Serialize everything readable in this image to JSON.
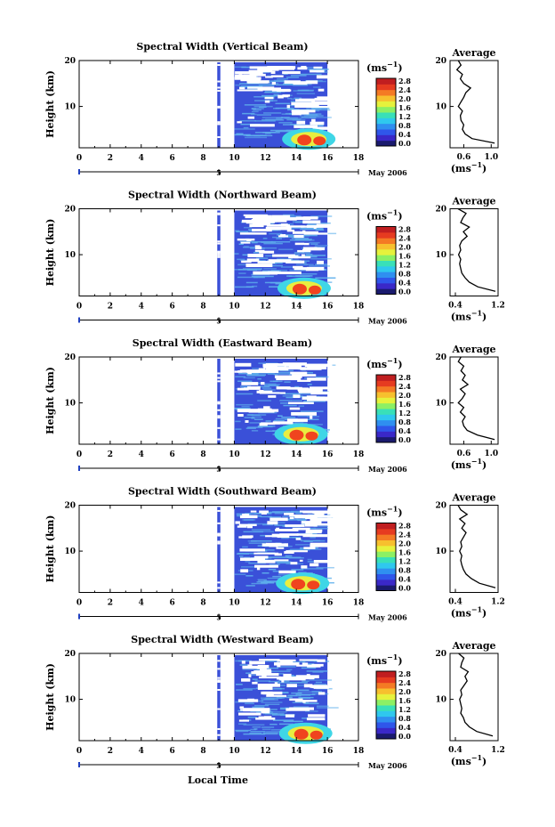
{
  "figure": {
    "xlabel": "Local Time",
    "ylabel": "Height (km)",
    "date_label": "May 2006",
    "colorbar_unit": "(ms",
    "colorbar_unit_exp": "−1",
    "avg_title": "Average",
    "avg_xunit": "(ms",
    "avg_xunit_exp": "−1",
    "colorbar_ticks": [
      "0.0",
      "0.4",
      "0.8",
      "1.2",
      "1.6",
      "2.0",
      "2.4",
      "2.8"
    ],
    "colorbar_colors": [
      "#1a1a6e",
      "#3a28c8",
      "#2f56ea",
      "#2f8ff0",
      "#2fc8ee",
      "#39e0b8",
      "#8cf064",
      "#e6f23c",
      "#f7c02e",
      "#f47a24",
      "#e63b20",
      "#c01e20"
    ],
    "x_ticks": [
      0,
      2,
      4,
      6,
      8,
      10,
      12,
      14,
      16,
      18
    ],
    "y_ticks": [
      10,
      20
    ],
    "colors": {
      "background": "#3a50d8",
      "streak": "#5fb0ec",
      "hot": "#f0441e"
    }
  },
  "chart_data": [
    {
      "type": "heatmap",
      "title": "Spectral Width (Vertical Beam)",
      "xlim": [
        0,
        18
      ],
      "ylim": [
        1,
        20
      ],
      "x_ticks": [
        0,
        2,
        4,
        6,
        8,
        10,
        12,
        14,
        16,
        18
      ],
      "y_ticks": [
        10,
        20
      ],
      "coverage": [
        [
          8.9,
          9.1
        ],
        [
          10.0,
          16.0
        ]
      ],
      "max_height_km": 20,
      "hot_spot": {
        "t": 14.8,
        "h": 2.5,
        "value": 2.8
      },
      "average_profile": {
        "title": "Average",
        "xlim": [
          0.4,
          1.1
        ],
        "x_ticks": [
          0.6,
          1.0
        ],
        "y_ticks": [
          10,
          20
        ],
        "height_km": [
          2,
          3,
          4,
          5,
          6,
          7,
          8,
          9,
          10,
          11,
          12,
          13,
          14,
          15,
          16,
          17,
          18,
          19,
          20
        ],
        "value": [
          1.05,
          0.72,
          0.62,
          0.58,
          0.6,
          0.56,
          0.55,
          0.58,
          0.52,
          0.56,
          0.6,
          0.63,
          0.7,
          0.6,
          0.55,
          0.58,
          0.5,
          0.56,
          0.52
        ]
      }
    },
    {
      "type": "heatmap",
      "title": "Spectral Width (Northward Beam)",
      "xlim": [
        0,
        18
      ],
      "ylim": [
        1,
        20
      ],
      "x_ticks": [
        0,
        2,
        4,
        6,
        8,
        10,
        12,
        14,
        16,
        18
      ],
      "y_ticks": [
        10,
        20
      ],
      "coverage": [
        [
          8.9,
          9.1
        ],
        [
          10.0,
          16.0
        ]
      ],
      "max_height_km": 20,
      "hot_spot": {
        "t": 14.5,
        "h": 2.3,
        "value": 2.8
      },
      "average_profile": {
        "title": "Average",
        "xlim": [
          0.3,
          1.2
        ],
        "x_ticks": [
          0.4,
          1.2
        ],
        "y_ticks": [
          10,
          20
        ],
        "height_km": [
          2,
          3,
          4,
          5,
          6,
          7,
          8,
          9,
          10,
          11,
          12,
          13,
          14,
          15,
          16,
          17,
          18,
          19,
          20
        ],
        "value": [
          1.15,
          0.82,
          0.66,
          0.58,
          0.52,
          0.5,
          0.48,
          0.5,
          0.46,
          0.5,
          0.48,
          0.52,
          0.62,
          0.55,
          0.66,
          0.5,
          0.54,
          0.6,
          0.45
        ]
      }
    },
    {
      "type": "heatmap",
      "title": "Spectral Width (Eastward Beam)",
      "xlim": [
        0,
        18
      ],
      "ylim": [
        1,
        20
      ],
      "x_ticks": [
        0,
        2,
        4,
        6,
        8,
        10,
        12,
        14,
        16,
        18
      ],
      "y_ticks": [
        10,
        20
      ],
      "coverage": [
        [
          8.9,
          9.1
        ],
        [
          10.0,
          16.0
        ]
      ],
      "max_height_km": 20,
      "hot_spot": {
        "t": 14.3,
        "h": 2.8,
        "value": 2.8
      },
      "average_profile": {
        "title": "Average",
        "xlim": [
          0.4,
          1.1
        ],
        "x_ticks": [
          0.6,
          1.0
        ],
        "y_ticks": [
          10,
          20
        ],
        "height_km": [
          2,
          3,
          4,
          5,
          6,
          7,
          8,
          9,
          10,
          11,
          12,
          13,
          14,
          15,
          16,
          17,
          18,
          19,
          20
        ],
        "value": [
          1.05,
          0.8,
          0.65,
          0.6,
          0.58,
          0.62,
          0.55,
          0.6,
          0.52,
          0.58,
          0.62,
          0.55,
          0.66,
          0.58,
          0.62,
          0.56,
          0.6,
          0.52,
          0.56
        ]
      }
    },
    {
      "type": "heatmap",
      "title": "Spectral Width (Southward Beam)",
      "xlim": [
        0,
        18
      ],
      "ylim": [
        1,
        20
      ],
      "x_ticks": [
        0,
        2,
        4,
        6,
        8,
        10,
        12,
        14,
        16,
        18
      ],
      "y_ticks": [
        10,
        20
      ],
      "coverage": [
        [
          8.9,
          9.1
        ],
        [
          10.0,
          16.0
        ]
      ],
      "max_height_km": 20,
      "hot_spot": {
        "t": 14.4,
        "h": 2.6,
        "value": 2.8
      },
      "average_profile": {
        "title": "Average",
        "xlim": [
          0.3,
          1.2
        ],
        "x_ticks": [
          0.4,
          1.2
        ],
        "y_ticks": [
          10,
          20
        ],
        "height_km": [
          2,
          3,
          4,
          5,
          6,
          7,
          8,
          9,
          10,
          11,
          12,
          13,
          14,
          15,
          16,
          17,
          18,
          19,
          20
        ],
        "value": [
          1.15,
          0.85,
          0.7,
          0.6,
          0.55,
          0.52,
          0.5,
          0.52,
          0.48,
          0.52,
          0.5,
          0.55,
          0.6,
          0.52,
          0.58,
          0.48,
          0.62,
          0.5,
          0.45
        ]
      }
    },
    {
      "type": "heatmap",
      "title": "Spectral Width (Westward Beam)",
      "xlim": [
        0,
        18
      ],
      "ylim": [
        1,
        20
      ],
      "x_ticks": [
        0,
        2,
        4,
        6,
        8,
        10,
        12,
        14,
        16,
        18
      ],
      "y_ticks": [
        10,
        20
      ],
      "coverage": [
        [
          8.9,
          9.1
        ],
        [
          10.0,
          16.0
        ]
      ],
      "max_height_km": 20,
      "hot_spot": {
        "t": 14.6,
        "h": 2.2,
        "value": 2.8
      },
      "average_profile": {
        "title": "Average",
        "xlim": [
          0.3,
          1.2
        ],
        "x_ticks": [
          0.4,
          1.2
        ],
        "y_ticks": [
          10,
          20
        ],
        "height_km": [
          2,
          3,
          4,
          5,
          6,
          7,
          8,
          9,
          10,
          11,
          12,
          13,
          14,
          15,
          16,
          17,
          18,
          19,
          20
        ],
        "value": [
          1.1,
          0.8,
          0.66,
          0.58,
          0.55,
          0.5,
          0.52,
          0.5,
          0.48,
          0.52,
          0.5,
          0.56,
          0.62,
          0.58,
          0.64,
          0.5,
          0.52,
          0.56,
          0.46
        ]
      }
    }
  ]
}
